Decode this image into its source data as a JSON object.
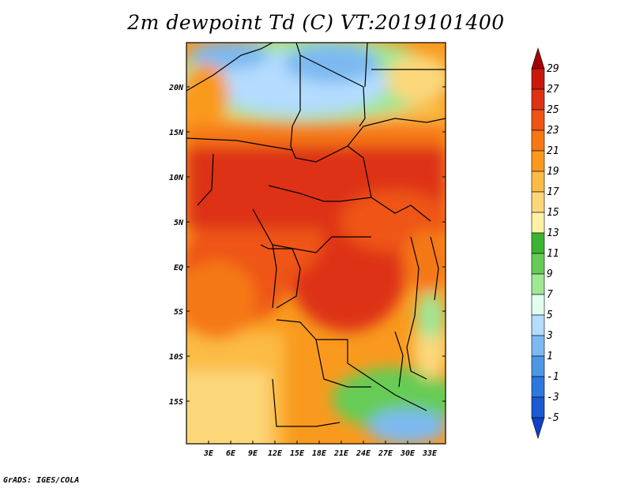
{
  "title": "2m dewpoint Td (C) VT:2019101400",
  "footer": "GrADS: IGES/COLA",
  "map": {
    "lat_labels": [
      "20N",
      "15N",
      "10N",
      "5N",
      "EQ",
      "5S",
      "10S",
      "15S"
    ],
    "lon_labels": [
      "3E",
      "6E",
      "9E",
      "12E",
      "15E",
      "18E",
      "21E",
      "24E",
      "27E",
      "30E",
      "33E"
    ]
  },
  "colorbar": {
    "labels": [
      "29",
      "27",
      "25",
      "23",
      "21",
      "19",
      "17",
      "15",
      "13",
      "11",
      "9",
      "7",
      "5",
      "3",
      "1",
      "-1",
      "-3",
      "-5"
    ],
    "colors": [
      "#a50000",
      "#c8180c",
      "#dd3214",
      "#ee5514",
      "#f57814",
      "#f99a1e",
      "#fbbb45",
      "#fcd77a",
      "#fef1a6",
      "#3bb431",
      "#66cc55",
      "#a1e695",
      "#e1ffee",
      "#b4dcff",
      "#7db9f0",
      "#4e96e6",
      "#2d78dc",
      "#1b5ad2",
      "#1040c8"
    ]
  }
}
